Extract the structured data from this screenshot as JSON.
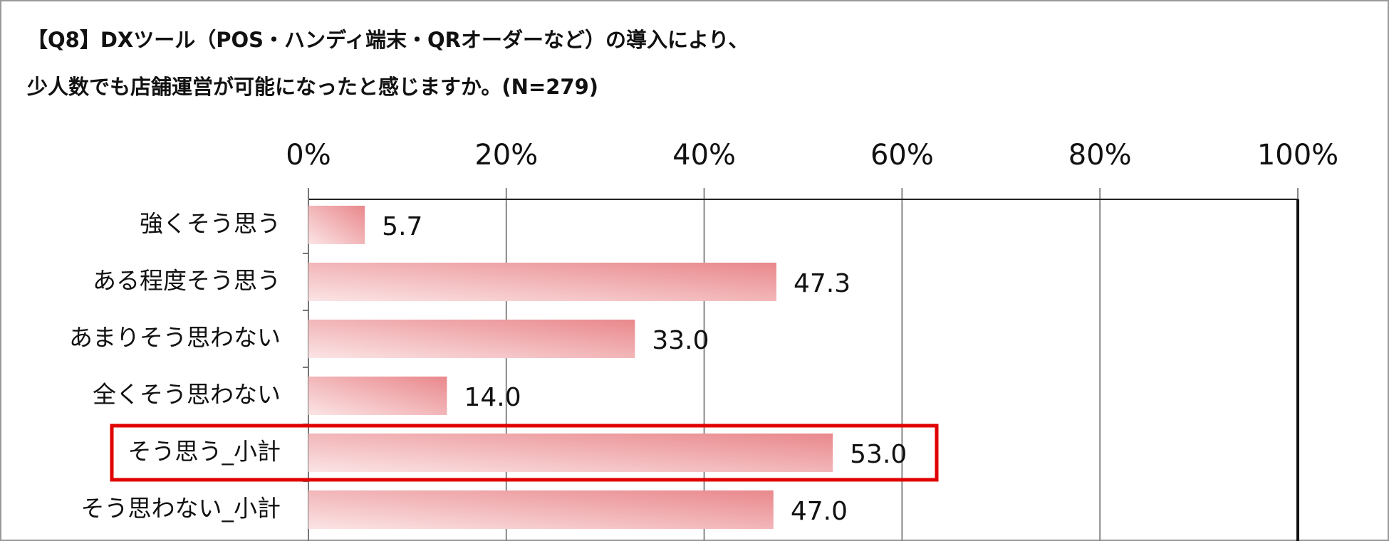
{
  "chart_data": {
    "type": "bar",
    "orientation": "horizontal",
    "title": [
      "【Q8】DXツール（POS・ハンディ端末・QRオーダーなど）の導入により、",
      "少人数でも店舗運営が可能になったと感じますか。(N=279)"
    ],
    "categories": [
      "強くそう思う",
      "ある程度そう思う",
      "あまりそう思わない",
      "全くそう思わない",
      "そう思う_小計",
      "そう思わない_小計"
    ],
    "values": [
      5.7,
      47.3,
      33,
      14,
      53,
      47
    ],
    "value_labels": [
      "5.7",
      "47.3",
      "33.0",
      "14.0",
      "53.0",
      "47.0"
    ],
    "color": "#e9888c",
    "xlim": [
      0,
      100
    ],
    "xticks": [
      {
        "value": 0,
        "label": "0%"
      },
      {
        "value": 20,
        "label": "20%"
      },
      {
        "value": 40,
        "label": "40%"
      },
      {
        "value": 60,
        "label": "60%"
      },
      {
        "value": 80,
        "label": "80%"
      },
      {
        "value": 100,
        "label": "100%"
      }
    ],
    "grid": true,
    "highlight_color": "#e00000"
  }
}
